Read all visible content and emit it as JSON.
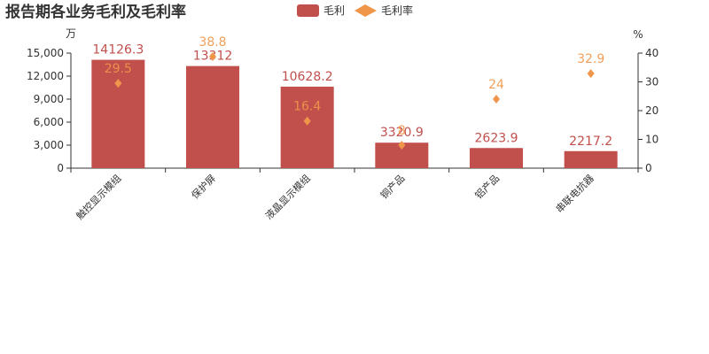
{
  "chart_data": {
    "type": "bar",
    "title": "报告期各业务毛利及毛利率",
    "categories": [
      "触控显示模组",
      "保护屏",
      "液晶显示模组",
      "铜产品",
      "铝产品",
      "串联电抗器"
    ],
    "series": [
      {
        "name": "毛利",
        "type": "bar",
        "color": "#c1504d",
        "values": [
          14126.3,
          13312,
          10628.2,
          3320.9,
          2623.9,
          2217.2
        ]
      },
      {
        "name": "毛利率",
        "type": "scatter",
        "axis": "y2",
        "color": "#f0964a",
        "values": [
          29.5,
          38.8,
          16.4,
          8,
          24,
          32.9
        ]
      }
    ],
    "y_label": "万",
    "y2_label": "%",
    "ylim": [
      0,
      15000
    ],
    "yticks": [
      0,
      {
        "value": 3000,
        "label": "3,000"
      },
      {
        "value": 6000,
        "label": "6,000"
      },
      {
        "value": 9000,
        "label": "9,000"
      },
      {
        "value": 12000,
        "label": "12,000"
      },
      {
        "value": 15000,
        "label": "15,000"
      }
    ],
    "y2lim": [
      0,
      40
    ],
    "y2ticks": [
      0,
      10,
      20,
      30,
      40
    ],
    "legend": "top"
  }
}
